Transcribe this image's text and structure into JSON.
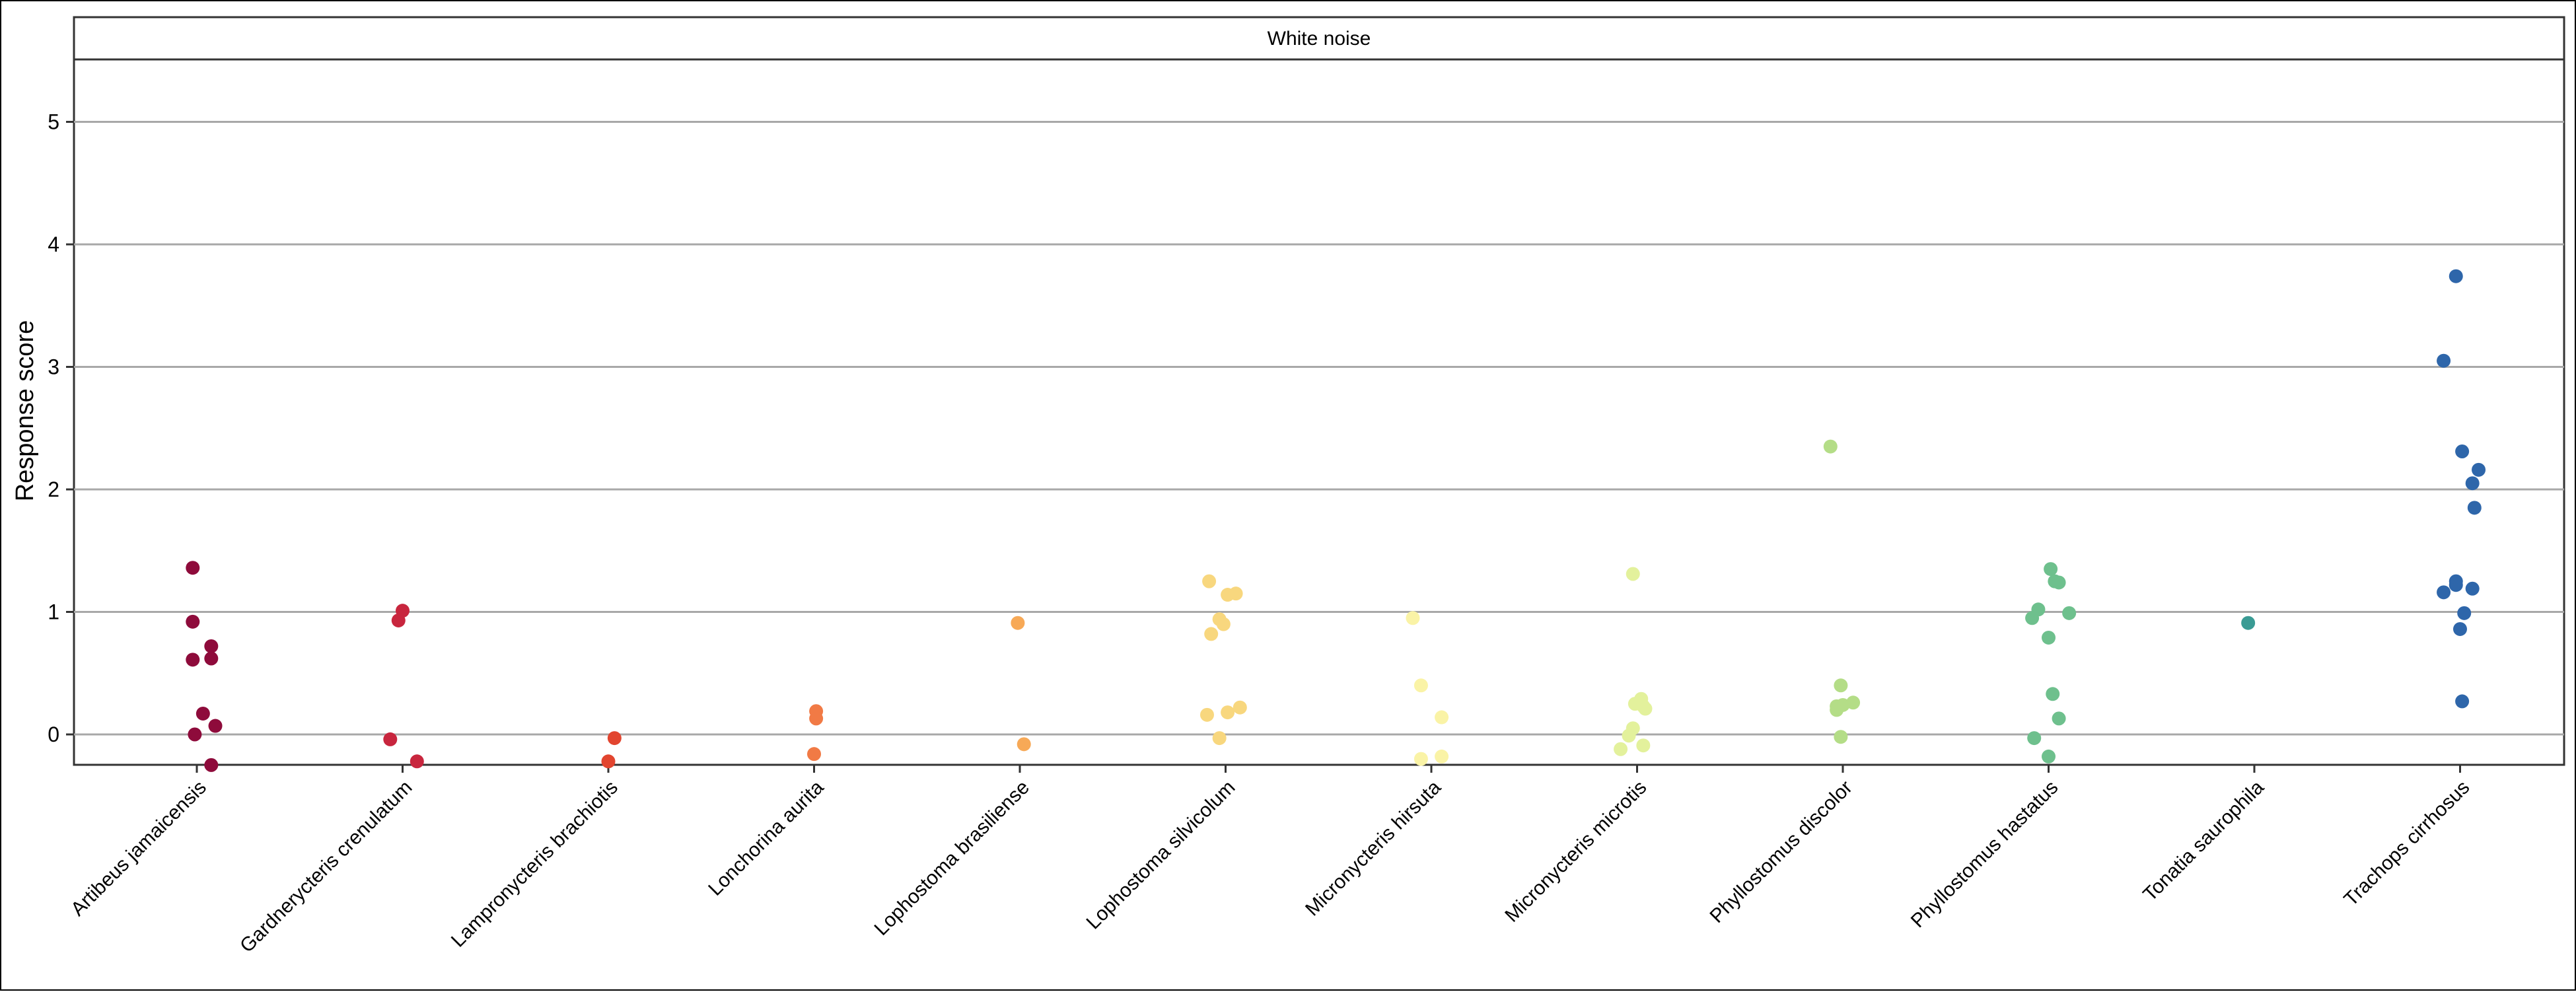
{
  "chart_data": {
    "type": "scatter",
    "panel_title": "White noise",
    "xlabel": "",
    "ylabel": "Response score",
    "ylim": [
      -0.25,
      5.5
    ],
    "yticks": [
      0,
      1,
      2,
      3,
      4,
      5
    ],
    "grid": true,
    "categories": [
      "Artibeus jamaicensis",
      "Gardnerycteris crenulatum",
      "Lampronycteris brachiotis",
      "Lonchorina aurita",
      "Lophostoma brasiliense",
      "Lophostoma silvicolum",
      "Micronycteris hirsuta",
      "Micronycteris microtis",
      "Phyllostomus discolor",
      "Phyllostomus hastatus",
      "Tonatia saurophila",
      "Trachops cirrhosus"
    ],
    "colors": [
      "#8E0B3B",
      "#C8263E",
      "#E2452F",
      "#F17A45",
      "#F7A957",
      "#F8D77E",
      "#FAF3A6",
      "#E3F19C",
      "#B4DD87",
      "#6EC08D",
      "#3A9B94",
      "#2E66AA"
    ],
    "series": [
      {
        "category": "Artibeus jamaicensis",
        "points": [
          [
            -0.02,
            1.36
          ],
          [
            -0.02,
            0.92
          ],
          [
            -0.02,
            0.61
          ],
          [
            0.07,
            0.72
          ],
          [
            0.07,
            0.62
          ],
          [
            0.03,
            0.17
          ],
          [
            -0.01,
            0.0
          ],
          [
            0.09,
            0.07
          ],
          [
            0.07,
            -0.25
          ]
        ]
      },
      {
        "category": "Gardnerycteris crenulatum",
        "points": [
          [
            0.0,
            1.01
          ],
          [
            -0.02,
            0.93
          ],
          [
            -0.06,
            -0.04
          ],
          [
            0.07,
            -0.22
          ]
        ]
      },
      {
        "category": "Lampronycteris brachiotis",
        "points": [
          [
            0.03,
            -0.03
          ],
          [
            0.0,
            -0.22
          ]
        ]
      },
      {
        "category": "Lonchorina aurita",
        "points": [
          [
            0.01,
            0.19
          ],
          [
            0.01,
            0.13
          ],
          [
            0.0,
            -0.16
          ]
        ]
      },
      {
        "category": "Lophostoma brasiliense",
        "points": [
          [
            -0.01,
            0.91
          ],
          [
            0.02,
            -0.08
          ]
        ]
      },
      {
        "category": "Lophostoma silvicolum",
        "points": [
          [
            -0.08,
            1.25
          ],
          [
            0.01,
            1.14
          ],
          [
            0.05,
            1.15
          ],
          [
            -0.03,
            0.94
          ],
          [
            -0.01,
            0.9
          ],
          [
            -0.07,
            0.82
          ],
          [
            0.07,
            0.22
          ],
          [
            0.01,
            0.18
          ],
          [
            -0.09,
            0.16
          ],
          [
            -0.03,
            -0.03
          ]
        ]
      },
      {
        "category": "Micronycteris hirsuta",
        "points": [
          [
            -0.09,
            0.95
          ],
          [
            -0.05,
            0.4
          ],
          [
            0.05,
            0.14
          ],
          [
            -0.05,
            -0.2
          ],
          [
            0.05,
            -0.18
          ]
        ]
      },
      {
        "category": "Micronycteris microtis",
        "points": [
          [
            -0.02,
            1.31
          ],
          [
            0.02,
            0.29
          ],
          [
            -0.01,
            0.25
          ],
          [
            0.03,
            0.23
          ],
          [
            0.04,
            0.21
          ],
          [
            -0.02,
            0.05
          ],
          [
            -0.04,
            -0.01
          ],
          [
            0.03,
            -0.09
          ],
          [
            -0.08,
            -0.12
          ]
        ]
      },
      {
        "category": "Phyllostomus discolor",
        "points": [
          [
            -0.06,
            2.35
          ],
          [
            -0.01,
            0.4
          ],
          [
            0.05,
            0.26
          ],
          [
            0.0,
            0.24
          ],
          [
            -0.03,
            0.23
          ],
          [
            -0.03,
            0.2
          ],
          [
            -0.01,
            -0.02
          ]
        ]
      },
      {
        "category": "Phyllostomus hastatus",
        "points": [
          [
            0.01,
            1.35
          ],
          [
            0.03,
            1.25
          ],
          [
            0.05,
            1.24
          ],
          [
            -0.05,
            1.02
          ],
          [
            0.1,
            0.99
          ],
          [
            -0.08,
            0.95
          ],
          [
            0.0,
            0.79
          ],
          [
            0.02,
            0.33
          ],
          [
            0.05,
            0.13
          ],
          [
            -0.07,
            -0.03
          ],
          [
            0.0,
            -0.18
          ]
        ]
      },
      {
        "category": "Tonatia saurophila",
        "points": [
          [
            -0.03,
            0.91
          ]
        ]
      },
      {
        "category": "Trachops cirrhosus",
        "points": [
          [
            -0.02,
            3.74
          ],
          [
            -0.08,
            3.05
          ],
          [
            0.01,
            2.31
          ],
          [
            0.09,
            2.16
          ],
          [
            0.06,
            2.05
          ],
          [
            0.07,
            1.85
          ],
          [
            -0.02,
            1.25
          ],
          [
            -0.02,
            1.22
          ],
          [
            -0.08,
            1.16
          ],
          [
            0.06,
            1.19
          ],
          [
            0.02,
            0.99
          ],
          [
            0.0,
            0.86
          ],
          [
            0.01,
            0.27
          ]
        ]
      }
    ]
  }
}
